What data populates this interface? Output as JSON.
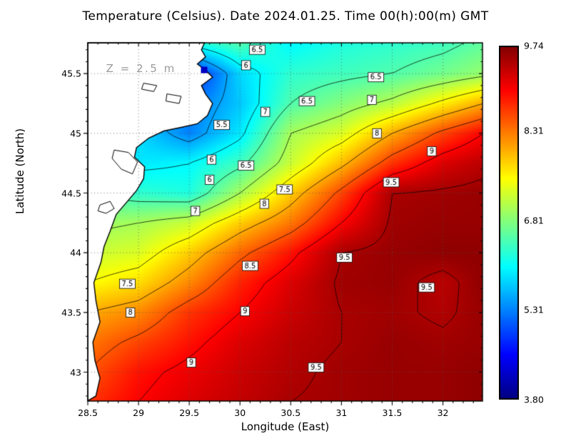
{
  "chart_data": {
    "type": "heatmap",
    "title": "Temperature (Celsius). Date 2024.01.25. Time 00(h):00(m) GMT",
    "xlabel": "Longitude (East)",
    "ylabel": "Latitude (North)",
    "annotation": "Z = 2.5 m",
    "annotation_pos": {
      "lon": 28.68,
      "lat": 45.54
    },
    "xlim": [
      28.5,
      32.39
    ],
    "ylim": [
      42.758,
      45.758
    ],
    "xticks": [
      28.5,
      29,
      29.5,
      30,
      30.5,
      31,
      31.5,
      32
    ],
    "xtick_labels": [
      "28.5",
      "29",
      "29.5",
      "30",
      "30.5",
      "31",
      "31.5",
      "32"
    ],
    "yticks": [
      43,
      43.5,
      44,
      44.5,
      45,
      45.5
    ],
    "ytick_labels": [
      "43",
      "43.5",
      "44",
      "44.5",
      "45",
      "45.5"
    ],
    "grid": "dotted",
    "colormap": "jet",
    "colorbar": {
      "min": 3.8,
      "max": 9.74,
      "tick_values": [
        9.74,
        8.31,
        6.81,
        5.31,
        3.8
      ],
      "tick_labels": [
        "9.74",
        "8.31",
        "6.81",
        "5.31",
        "3.80"
      ]
    },
    "contour_interval": 0.5,
    "contour_levels": [
      4,
      4.5,
      5,
      5.5,
      6,
      6.5,
      7,
      7.5,
      8,
      8.5,
      9,
      9.5
    ],
    "grid_lons": [
      28.5,
      29.0,
      29.5,
      30.0,
      30.5,
      31.0,
      31.5,
      32.0,
      32.4
    ],
    "grid_lats": [
      45.75,
      45.5,
      45.25,
      45.0,
      44.75,
      44.5,
      44.25,
      44.0,
      43.75,
      43.5,
      43.25,
      43.0,
      42.75
    ],
    "temperature": [
      [
        6.0,
        6.0,
        6.1,
        6.5,
        6.0,
        6.2,
        6.3,
        6.4,
        6.6
      ],
      [
        5.5,
        5.0,
        4.6,
        5.8,
        6.3,
        6.4,
        6.5,
        6.7,
        6.9
      ],
      [
        5.5,
        5.4,
        5.2,
        5.7,
        6.5,
        6.8,
        7.1,
        7.6,
        8.0
      ],
      [
        6.0,
        5.8,
        5.3,
        5.9,
        7.0,
        7.3,
        8.0,
        8.6,
        9.0
      ],
      [
        6.2,
        5.9,
        6.0,
        6.4,
        7.2,
        7.9,
        8.7,
        9.2,
        9.4
      ],
      [
        6.5,
        6.3,
        6.2,
        7.0,
        7.8,
        8.6,
        9.5,
        9.55,
        9.6
      ],
      [
        6.9,
        7.0,
        7.2,
        7.8,
        8.3,
        9.0,
        9.55,
        9.6,
        9.6
      ],
      [
        7.2,
        7.3,
        7.8,
        8.4,
        8.9,
        9.5,
        9.6,
        9.65,
        9.65
      ],
      [
        7.5,
        7.7,
        8.2,
        8.8,
        9.2,
        9.55,
        9.6,
        9.4,
        9.65
      ],
      [
        8.0,
        8.2,
        8.7,
        9.0,
        9.3,
        9.5,
        9.55,
        9.45,
        9.6
      ],
      [
        8.3,
        8.6,
        8.9,
        9.2,
        9.4,
        9.5,
        9.6,
        9.55,
        9.6
      ],
      [
        8.5,
        8.9,
        9.1,
        9.3,
        9.45,
        9.55,
        9.6,
        9.6,
        9.65
      ],
      [
        8.7,
        9.0,
        9.2,
        9.35,
        9.5,
        9.55,
        9.6,
        9.6,
        9.65
      ]
    ],
    "contour_labels": [
      {
        "text": "6.5",
        "value": 6.5,
        "lon": 30.17,
        "lat": 45.7
      },
      {
        "text": "6",
        "value": 6.0,
        "lon": 30.06,
        "lat": 45.57
      },
      {
        "text": "6.5",
        "value": 6.5,
        "lon": 31.34,
        "lat": 45.47
      },
      {
        "text": "6.5",
        "value": 6.5,
        "lon": 30.66,
        "lat": 45.27
      },
      {
        "text": "7",
        "value": 7.0,
        "lon": 31.3,
        "lat": 45.28
      },
      {
        "text": "5.5",
        "value": 5.5,
        "lon": 29.82,
        "lat": 45.07
      },
      {
        "text": "7",
        "value": 7.0,
        "lon": 30.25,
        "lat": 45.18
      },
      {
        "text": "8",
        "value": 8.0,
        "lon": 31.35,
        "lat": 45.0
      },
      {
        "text": "6",
        "value": 6.0,
        "lon": 29.72,
        "lat": 44.78
      },
      {
        "text": "9",
        "value": 9.0,
        "lon": 31.89,
        "lat": 44.85
      },
      {
        "text": "6.5",
        "value": 6.5,
        "lon": 30.06,
        "lat": 44.73
      },
      {
        "text": "6",
        "value": 6.0,
        "lon": 29.7,
        "lat": 44.61
      },
      {
        "text": "9.5",
        "value": 9.5,
        "lon": 31.49,
        "lat": 44.59
      },
      {
        "text": "7.5",
        "value": 7.5,
        "lon": 30.44,
        "lat": 44.53
      },
      {
        "text": "8",
        "value": 8.0,
        "lon": 30.24,
        "lat": 44.41
      },
      {
        "text": "7",
        "value": 7.0,
        "lon": 29.56,
        "lat": 44.35
      },
      {
        "text": "9.5",
        "value": 9.5,
        "lon": 31.03,
        "lat": 43.96
      },
      {
        "text": "8.5",
        "value": 8.5,
        "lon": 30.1,
        "lat": 43.89
      },
      {
        "text": "7.5",
        "value": 7.5,
        "lon": 28.89,
        "lat": 43.74
      },
      {
        "text": "9.5",
        "value": 9.5,
        "lon": 31.84,
        "lat": 43.71
      },
      {
        "text": "8",
        "value": 8.0,
        "lon": 28.92,
        "lat": 43.5
      },
      {
        "text": "9",
        "value": 9.0,
        "lon": 30.05,
        "lat": 43.51
      },
      {
        "text": "9",
        "value": 9.0,
        "lon": 29.52,
        "lat": 43.08
      },
      {
        "text": "9.5",
        "value": 9.5,
        "lon": 30.75,
        "lat": 43.04
      }
    ],
    "coastline": [
      [
        28.5,
        42.76
      ],
      [
        28.58,
        42.8
      ],
      [
        28.62,
        42.95
      ],
      [
        28.57,
        43.1
      ],
      [
        28.55,
        43.25
      ],
      [
        28.62,
        43.42
      ],
      [
        28.58,
        43.6
      ],
      [
        28.56,
        43.75
      ],
      [
        28.63,
        43.92
      ],
      [
        28.66,
        44.05
      ],
      [
        28.72,
        44.18
      ],
      [
        28.78,
        44.32
      ],
      [
        28.88,
        44.42
      ],
      [
        28.98,
        44.52
      ],
      [
        29.05,
        44.62
      ],
      [
        29.06,
        44.72
      ],
      [
        28.96,
        44.8
      ],
      [
        28.98,
        44.88
      ],
      [
        29.1,
        44.96
      ],
      [
        29.25,
        45.02
      ],
      [
        29.42,
        45.05
      ],
      [
        29.58,
        45.08
      ],
      [
        29.68,
        45.15
      ],
      [
        29.73,
        45.25
      ],
      [
        29.66,
        45.33
      ],
      [
        29.62,
        45.4
      ],
      [
        29.73,
        45.47
      ],
      [
        29.66,
        45.53
      ],
      [
        29.58,
        45.58
      ],
      [
        29.66,
        45.64
      ],
      [
        29.62,
        45.7
      ],
      [
        29.65,
        45.758
      ]
    ],
    "lakes": [
      [
        [
          28.76,
          44.86
        ],
        [
          28.9,
          44.84
        ],
        [
          28.99,
          44.76
        ],
        [
          28.94,
          44.66
        ],
        [
          28.83,
          44.7
        ],
        [
          28.74,
          44.79
        ]
      ],
      [
        [
          28.62,
          44.4
        ],
        [
          28.72,
          44.43
        ],
        [
          28.76,
          44.37
        ],
        [
          28.68,
          44.33
        ],
        [
          28.6,
          44.35
        ]
      ],
      [
        [
          29.28,
          45.33
        ],
        [
          29.42,
          45.31
        ],
        [
          29.4,
          45.25
        ],
        [
          29.27,
          45.27
        ]
      ],
      [
        [
          29.05,
          45.42
        ],
        [
          29.18,
          45.4
        ],
        [
          29.15,
          45.35
        ],
        [
          29.03,
          45.37
        ]
      ]
    ],
    "marker": {
      "lon": 29.645,
      "lat": 45.53,
      "color": "#0000c0"
    },
    "colors": {
      "land": "#ffffff",
      "coast": "#000000",
      "contour": "#000000",
      "grid": "#555555",
      "frame": "#000000",
      "annotation": "#9b9b9b",
      "colorbar_top": "#8b0000",
      "colorbar_bottom": "#00008b"
    }
  }
}
